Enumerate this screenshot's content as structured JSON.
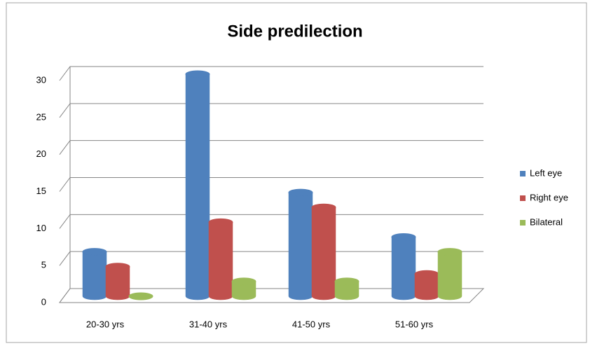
{
  "chart_data": {
    "type": "bar3d",
    "title": "Side predilection",
    "categories": [
      "20-30 yrs",
      "31-40 yrs",
      "41-50 yrs",
      "51-60 yrs"
    ],
    "series": [
      {
        "name": "Left eye",
        "color": "#4f81bd",
        "values": [
          6,
          30,
          14,
          8
        ]
      },
      {
        "name": "Right eye",
        "color": "#c0504d",
        "values": [
          4,
          10,
          12,
          3
        ]
      },
      {
        "name": "Bilateral",
        "color": "#9bbb59",
        "values": [
          0,
          2,
          2,
          6
        ]
      }
    ],
    "ylim": [
      0,
      30
    ],
    "yticks": [
      0,
      5,
      10,
      15,
      20,
      25,
      30
    ],
    "grid": true,
    "legend": "right"
  }
}
